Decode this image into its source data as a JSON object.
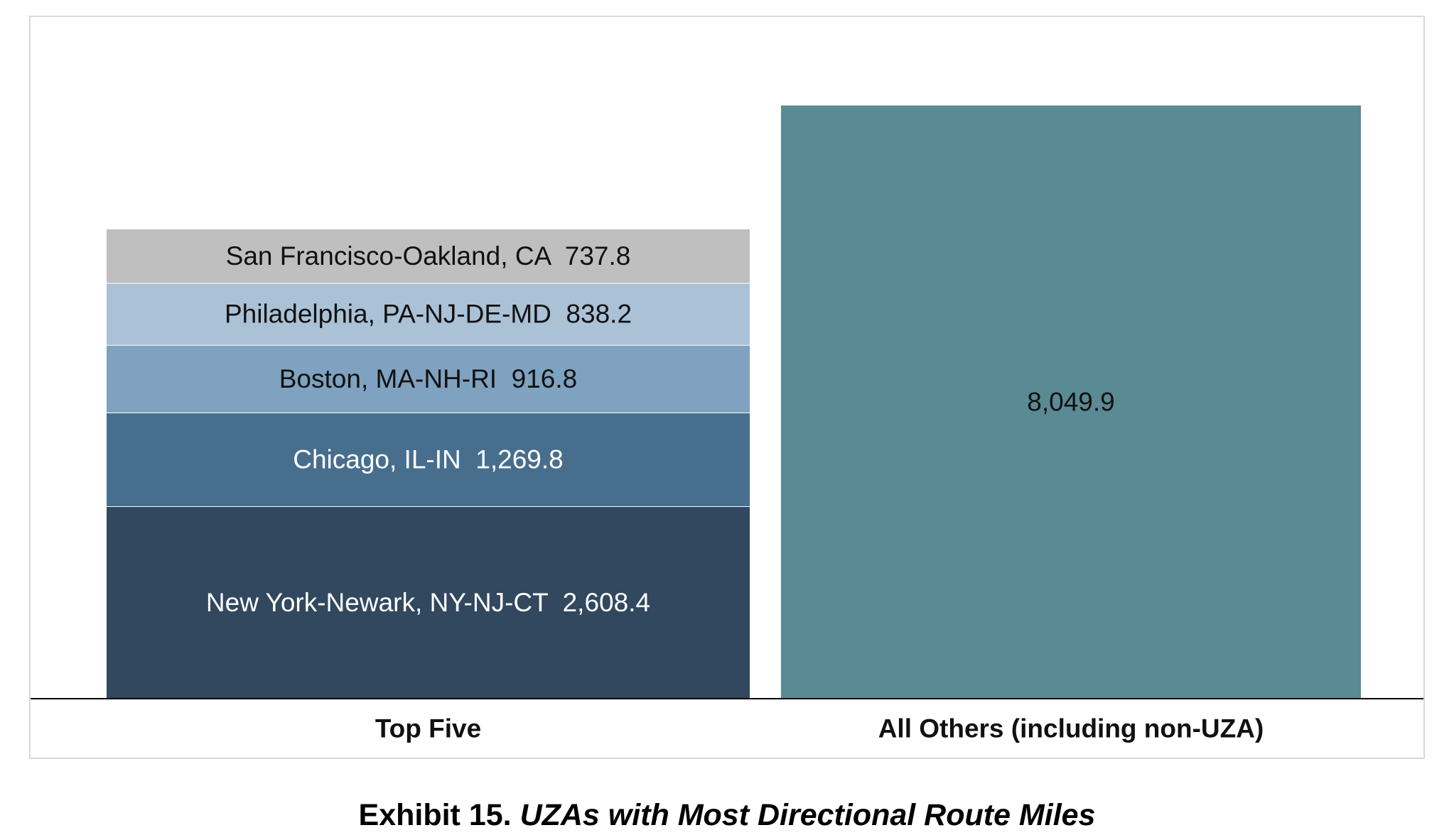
{
  "caption": {
    "prefix": "Exhibit 15.",
    "title": "UZAs with Most Directional Route Miles"
  },
  "chart_data": {
    "type": "bar",
    "stacked": true,
    "grid": false,
    "legend": "none",
    "ylim": [
      0,
      8700
    ],
    "categories": [
      "Top Five",
      "All Others (including non-UZA)"
    ],
    "series": [
      {
        "name": "New York-Newark, NY-NJ-CT",
        "values": [
          2608.4,
          null
        ],
        "color": "#31485f",
        "label": "New York-Newark, NY-NJ-CT  2,608.4",
        "text_color": "#ffffff"
      },
      {
        "name": "Chicago, IL-IN",
        "values": [
          1269.8,
          null
        ],
        "color": "#476f8d",
        "label": "Chicago, IL-IN  1,269.8",
        "text_color": "#ffffff"
      },
      {
        "name": "Boston, MA-NH-RI",
        "values": [
          916.8,
          null
        ],
        "color": "#7ea2bf",
        "label": "Boston, MA-NH-RI  916.8",
        "text_color": "#111111"
      },
      {
        "name": "Philadelphia, PA-NJ-DE-MD",
        "values": [
          838.2,
          null
        ],
        "color": "#aac1d6",
        "label": "Philadelphia, PA-NJ-DE-MD  838.2",
        "text_color": "#111111"
      },
      {
        "name": "San Francisco-Oakland, CA",
        "values": [
          737.8,
          null
        ],
        "color": "#bfbfbf",
        "label": "San Francisco-Oakland, CA  737.8",
        "text_color": "#111111"
      },
      {
        "name": "",
        "values": [
          null,
          8049.9
        ],
        "color": "#5a8a94",
        "label": "8,049.9",
        "text_color": "#111111"
      }
    ]
  }
}
